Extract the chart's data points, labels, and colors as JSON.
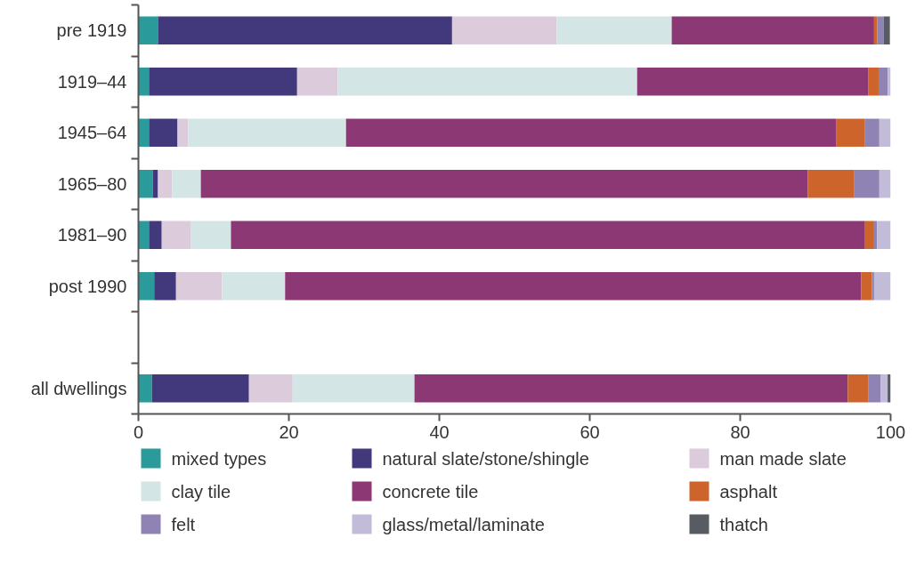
{
  "chart_data": {
    "type": "bar",
    "orientation": "horizontal",
    "stacked": true,
    "categories": [
      "pre 1919",
      "1919–44",
      "1945–64",
      "1965–80",
      "1981–90",
      "post 1990",
      null,
      "all dwellings"
    ],
    "xlim": [
      0,
      100
    ],
    "xticks": [
      0,
      20,
      40,
      60,
      80,
      100
    ],
    "grid": false,
    "legend": "bottom",
    "series": [
      {
        "name": "mixed types",
        "color": "#2a9a9a",
        "values": [
          2.6,
          1.4,
          1.4,
          1.9,
          1.4,
          2.1,
          null,
          1.8
        ]
      },
      {
        "name": "natural slate/stone/shingle",
        "color": "#42387c",
        "values": [
          39.1,
          19.7,
          3.8,
          0.7,
          1.7,
          2.9,
          null,
          12.9
        ]
      },
      {
        "name": "man made slate",
        "color": "#dccbdb",
        "values": [
          13.9,
          5.4,
          1.4,
          1.9,
          3.9,
          6.1,
          null,
          5.8
        ]
      },
      {
        "name": "clay tile",
        "color": "#d3e5e4",
        "values": [
          15.3,
          39.8,
          21.0,
          3.8,
          5.3,
          8.4,
          null,
          16.2
        ]
      },
      {
        "name": "concrete tile",
        "color": "#8b3874",
        "values": [
          26.9,
          30.7,
          65.2,
          80.7,
          84.3,
          76.6,
          null,
          57.6
        ]
      },
      {
        "name": "asphalt",
        "color": "#cc642b",
        "values": [
          0.4,
          1.4,
          3.8,
          6.1,
          1.2,
          1.4,
          null,
          2.7
        ]
      },
      {
        "name": "felt",
        "color": "#8f83b4",
        "values": [
          0.9,
          1.2,
          1.9,
          3.4,
          0.4,
          0.3,
          null,
          1.7
        ]
      },
      {
        "name": "glass/metal/laminate",
        "color": "#c2bcd9",
        "values": [
          null,
          0.4,
          1.5,
          1.5,
          1.8,
          2.2,
          null,
          0.9
        ]
      },
      {
        "name": "thatch",
        "color": "#575c63",
        "values": [
          0.8,
          0,
          0,
          0,
          0,
          0,
          null,
          0.4
        ]
      }
    ]
  }
}
